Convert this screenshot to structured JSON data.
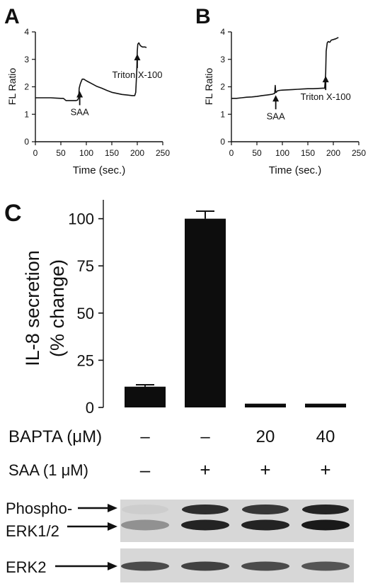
{
  "panels": {
    "a": "A",
    "b": "B",
    "c": "C"
  },
  "chart_data": [
    {
      "panel": "A",
      "type": "line",
      "xlabel": "Time (sec.)",
      "ylabel": "FL Ratio",
      "xlim": [
        0,
        250
      ],
      "ylim": [
        0,
        4
      ],
      "xticks": [
        0,
        50,
        100,
        150,
        200,
        250
      ],
      "yticks": [
        0,
        1,
        2,
        3,
        4
      ],
      "series": [
        {
          "x": [
            0,
            10,
            20,
            30,
            40,
            50,
            55,
            60,
            65,
            70,
            75,
            80,
            83,
            85,
            86,
            88,
            90,
            92,
            95,
            100,
            110,
            120,
            130,
            140,
            150,
            160,
            170,
            180,
            190,
            195,
            197,
            199,
            200,
            201,
            203,
            206,
            210,
            215,
            218
          ],
          "y": [
            1.6,
            1.6,
            1.6,
            1.6,
            1.59,
            1.58,
            1.58,
            1.5,
            1.5,
            1.5,
            1.5,
            1.5,
            1.52,
            1.6,
            1.95,
            2.1,
            2.2,
            2.28,
            2.28,
            2.22,
            2.12,
            2.02,
            1.95,
            1.87,
            1.8,
            1.76,
            1.72,
            1.7,
            1.68,
            1.68,
            1.8,
            2.6,
            3.3,
            3.55,
            3.6,
            3.5,
            3.45,
            3.45,
            3.43
          ]
        }
      ],
      "annotations": [
        {
          "text": "SAA",
          "x": 87
        },
        {
          "text": "Triton X-100",
          "x": 200
        }
      ]
    },
    {
      "panel": "B",
      "type": "line",
      "xlabel": "Time (sec.)",
      "ylabel": "FL Ratio",
      "xlim": [
        0,
        250
      ],
      "ylim": [
        0,
        4
      ],
      "xticks": [
        0,
        50,
        100,
        150,
        200,
        250
      ],
      "yticks": [
        0,
        1,
        2,
        3,
        4
      ],
      "series": [
        {
          "x": [
            0,
            10,
            20,
            30,
            40,
            50,
            60,
            70,
            80,
            85,
            86,
            87,
            88,
            90,
            95,
            100,
            110,
            120,
            130,
            140,
            150,
            160,
            170,
            180,
            183,
            185,
            186,
            188,
            190,
            193,
            196,
            200,
            205,
            210
          ],
          "y": [
            1.58,
            1.58,
            1.6,
            1.62,
            1.63,
            1.65,
            1.68,
            1.7,
            1.73,
            1.76,
            2.05,
            1.8,
            1.8,
            1.85,
            1.87,
            1.88,
            1.89,
            1.9,
            1.91,
            1.92,
            1.93,
            1.93,
            1.94,
            1.95,
            1.95,
            2.5,
            3.3,
            3.6,
            3.65,
            3.62,
            3.7,
            3.72,
            3.75,
            3.8
          ]
        }
      ],
      "annotations": [
        {
          "text": "SAA",
          "x": 87
        },
        {
          "text": "Triton X-100",
          "x": 185
        }
      ]
    },
    {
      "panel": "C",
      "type": "bar",
      "ylabel_lines": [
        "IL-8 secretion",
        "(% change)"
      ],
      "ylim": [
        0,
        110
      ],
      "yticks": [
        0,
        25,
        50,
        75,
        100
      ],
      "categories": [
        "1",
        "2",
        "3",
        "4"
      ],
      "values": [
        11,
        100,
        2,
        2
      ],
      "errors": [
        1,
        4,
        0.3,
        0.3
      ],
      "conditions": [
        {
          "label": "BAPTA (μM)",
          "values": [
            "–",
            "–",
            "20",
            "40"
          ]
        },
        {
          "label": "SAA (1 μM)",
          "values": [
            "–",
            "+",
            "+",
            "+"
          ]
        }
      ]
    }
  ],
  "blot": {
    "phospho_label_1": "Phospho-",
    "phospho_label_2": "ERK1/2",
    "erk2_label": "ERK2",
    "phospho_upper_intensity": [
      0.05,
      0.85,
      0.8,
      0.9
    ],
    "phospho_lower_intensity": [
      0.35,
      0.9,
      0.9,
      0.95
    ],
    "erk2_intensity": [
      0.7,
      0.75,
      0.7,
      0.65
    ]
  }
}
